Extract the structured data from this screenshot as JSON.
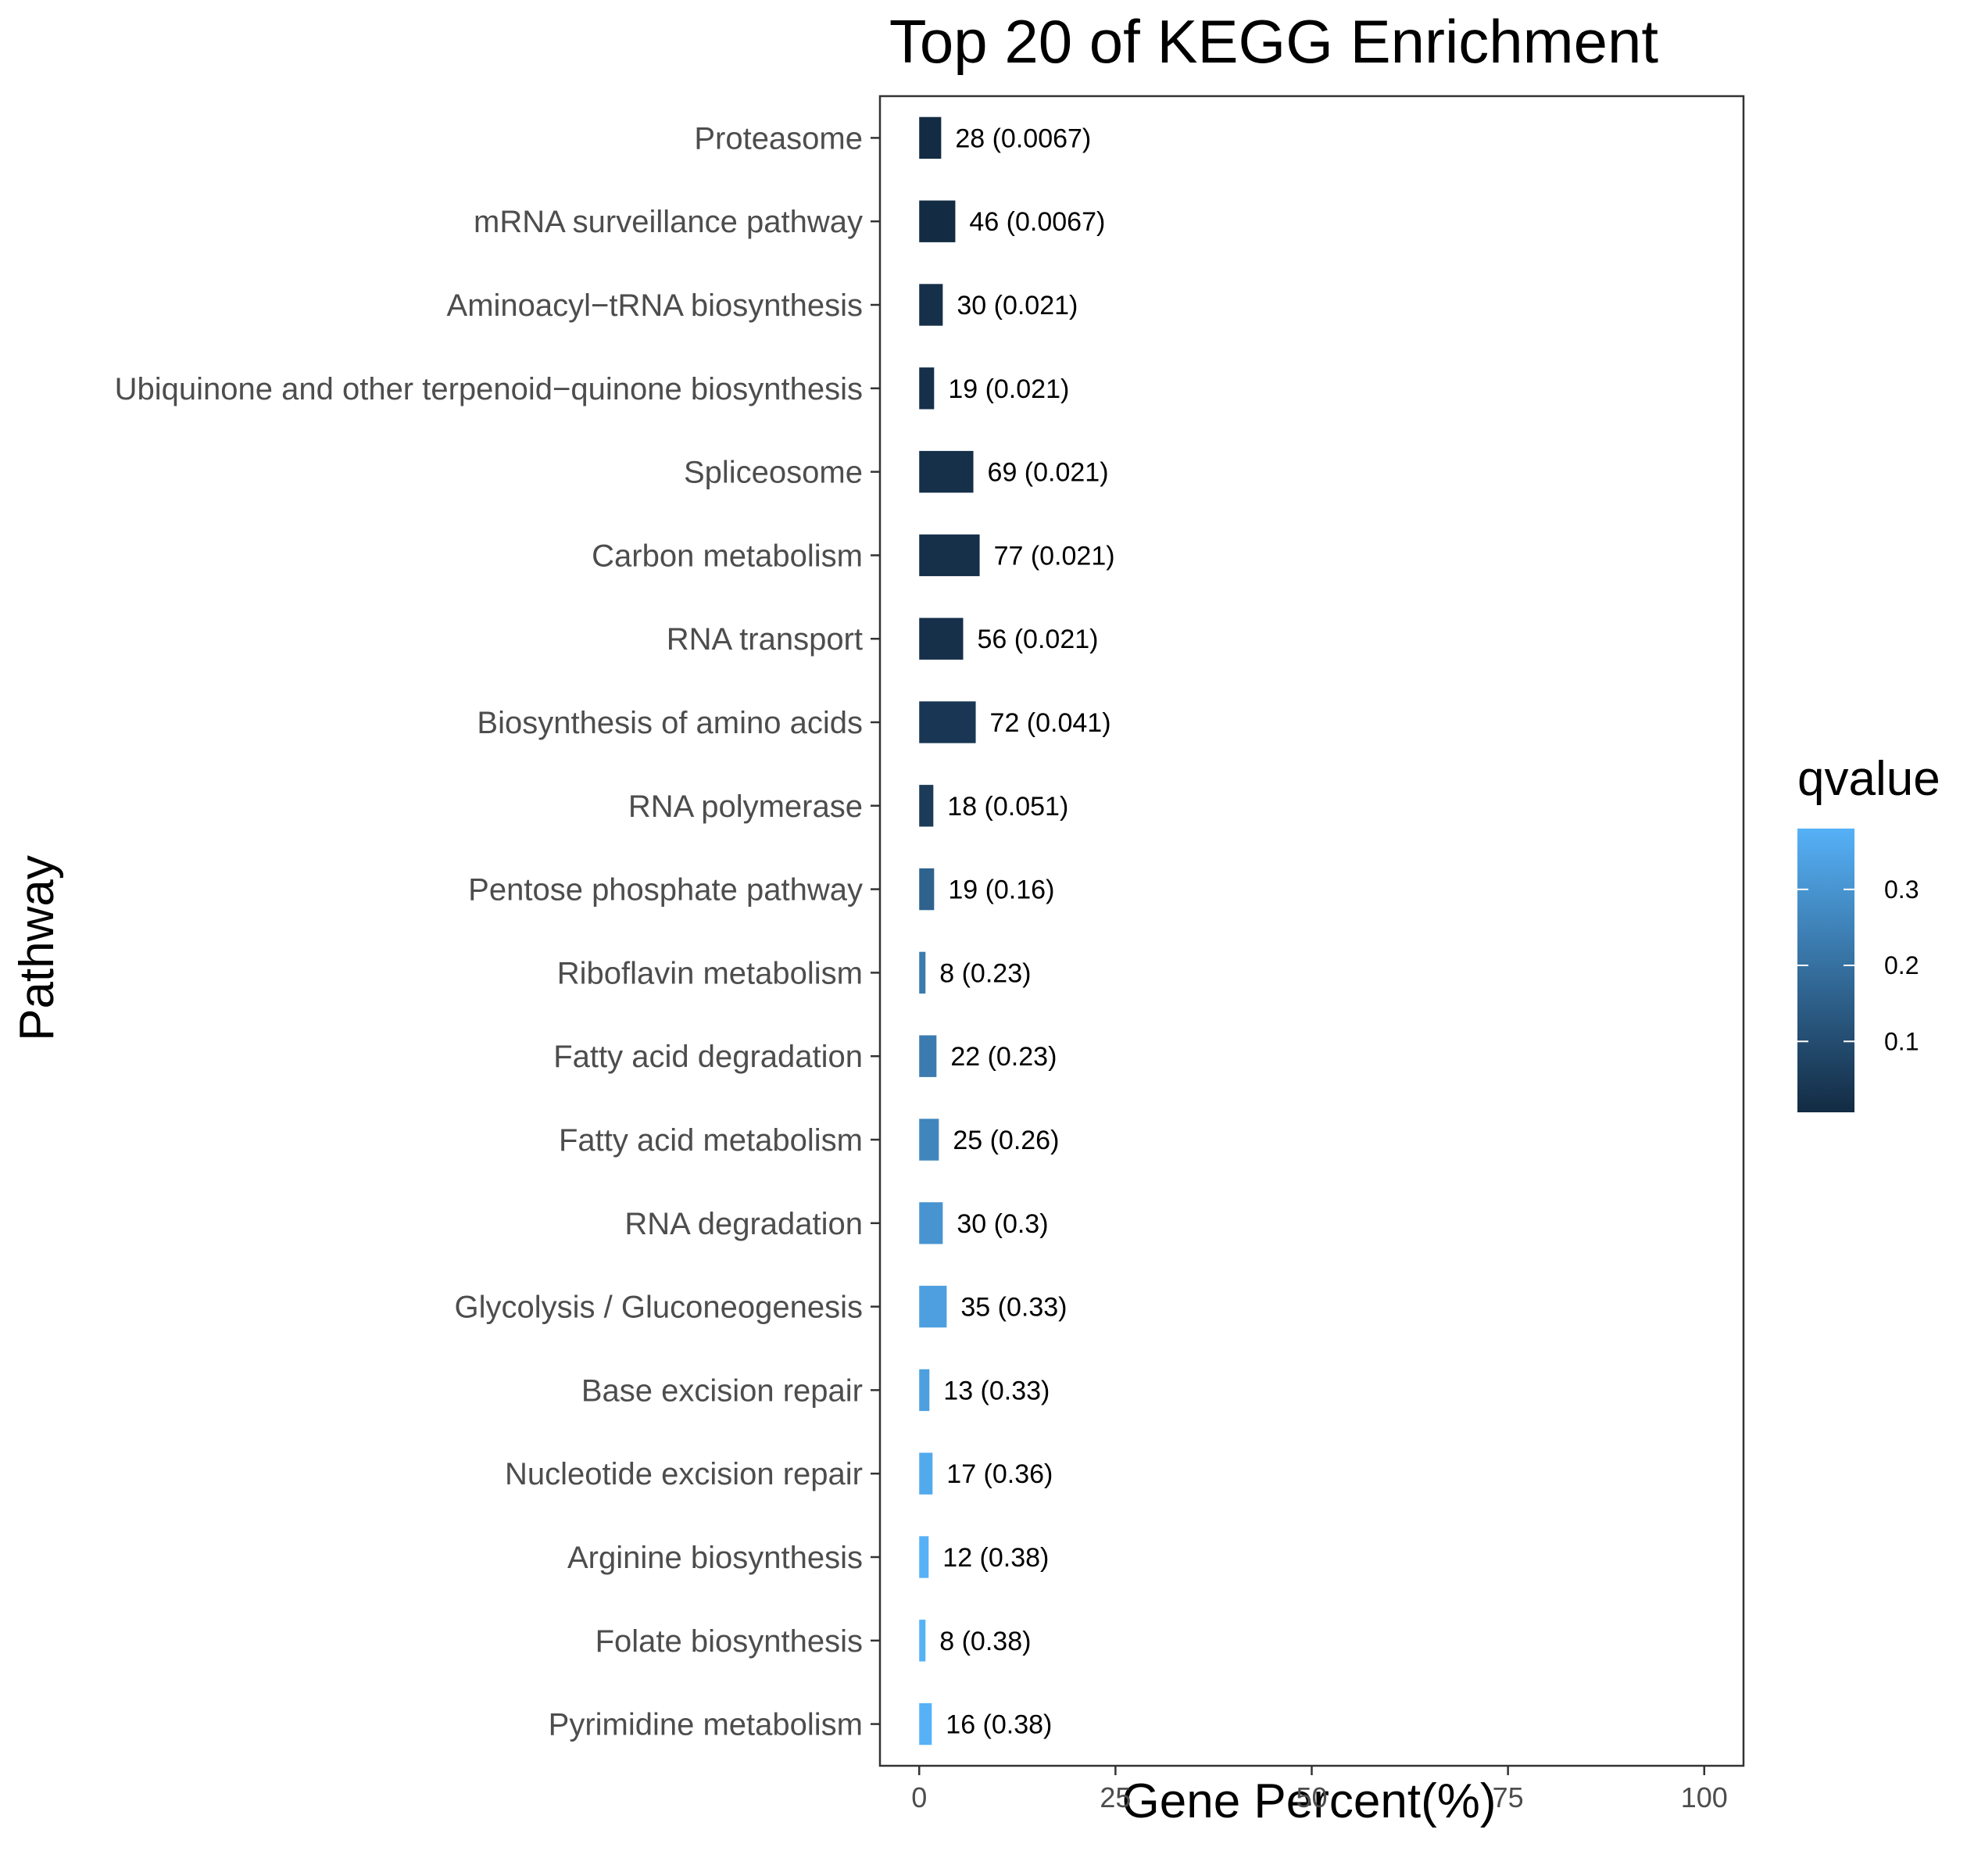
{
  "chart_data": {
    "type": "bar",
    "orientation": "horizontal",
    "title": "Top 20 of KEGG Enrichment",
    "xlabel": "Gene Percent(%)",
    "ylabel": "Pathway",
    "xlim": [
      -5,
      105
    ],
    "xticks": [
      "0",
      "25",
      "50",
      "75",
      "100"
    ],
    "grid": false,
    "legend": {
      "title": "qvalue",
      "placement": "right",
      "ticks": [
        "0.1",
        "0.2",
        "0.3"
      ],
      "range": [
        0.0067,
        0.38
      ],
      "low_color": "#132B43",
      "high_color": "#56B1F7"
    },
    "categories": [
      "Proteasome",
      "mRNA surveillance pathway",
      "Aminoacyl−tRNA biosynthesis",
      "Ubiquinone and other terpenoid−quinone biosynthesis",
      "Spliceosome",
      "Carbon metabolism",
      "RNA transport",
      "Biosynthesis of amino acids",
      "RNA polymerase",
      "Pentose phosphate pathway",
      "Riboflavin metabolism",
      "Fatty acid degradation",
      "Fatty acid metabolism",
      "RNA degradation",
      "Glycolysis / Gluconeogenesis",
      "Base excision repair",
      "Nucleotide excision repair",
      "Arginine biosynthesis",
      "Folate biosynthesis",
      "Pyrimidine metabolism"
    ],
    "values": [
      2.8,
      4.6,
      3.0,
      1.9,
      6.9,
      7.7,
      5.6,
      7.2,
      1.8,
      1.9,
      0.8,
      2.2,
      2.5,
      3.0,
      3.5,
      1.3,
      1.7,
      1.2,
      0.8,
      1.6
    ],
    "qvalues": [
      0.0067,
      0.0067,
      0.021,
      0.021,
      0.021,
      0.021,
      0.021,
      0.041,
      0.051,
      0.16,
      0.23,
      0.23,
      0.26,
      0.3,
      0.33,
      0.33,
      0.36,
      0.38,
      0.38,
      0.38
    ],
    "data_labels": [
      "28 (0.0067)",
      "46 (0.0067)",
      "30 (0.021)",
      "19 (0.021)",
      "69 (0.021)",
      "77 (0.021)",
      "56 (0.021)",
      "72 (0.041)",
      "18 (0.051)",
      "19 (0.16)",
      "8 (0.23)",
      "22 (0.23)",
      "25 (0.26)",
      "30 (0.3)",
      "35 (0.33)",
      "13 (0.33)",
      "17 (0.36)",
      "12 (0.38)",
      "8 (0.38)",
      "16 (0.38)"
    ]
  }
}
